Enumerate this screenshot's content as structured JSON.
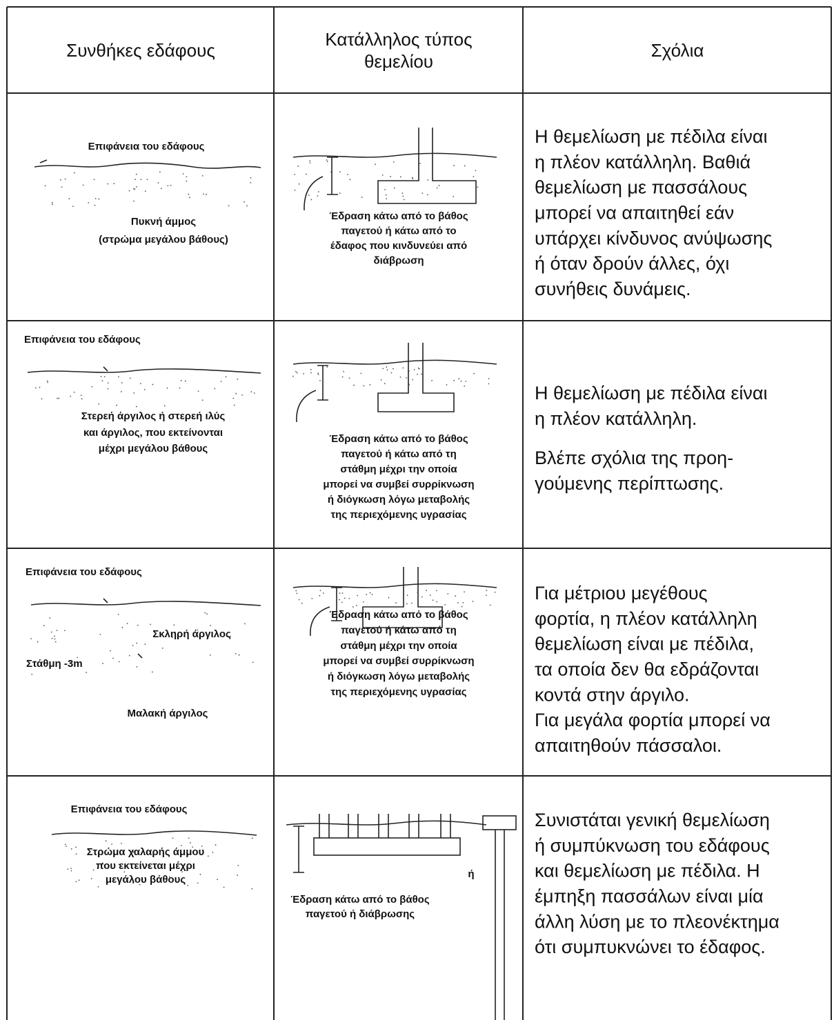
{
  "header": {
    "columns": [
      [
        "Συνθήκες εδάφους"
      ],
      [
        "Κατάλληλος τύπος",
        "θεμελίου"
      ],
      [
        "Σχόλια"
      ]
    ]
  },
  "rows": [
    {
      "soil": [
        "Επιφάνεια του εδάφους",
        "Πυκνή άμμος",
        "(στρώμα μεγάλου βάθους)"
      ],
      "foundation": [
        "Έδραση κάτω από το βάθος",
        "παγετού ή κάτω από το",
        "έδαφος που κινδυνεύει από",
        "διάβρωση"
      ],
      "comments": [
        [
          "Η θεμελίωση με πέδιλα είναι",
          "η πλέον κατάλληλη. Βαθιά",
          "θεμελίωση με πασσάλους",
          "μπορεί να απαιτηθεί εάν",
          "υπάρχει κίνδυνος ανύψωσης",
          "ή όταν δρούν άλλες, όχι",
          "συνήθεις δυνάμεις."
        ]
      ]
    },
    {
      "soil": [
        "Επιφάνεια του εδάφους",
        "Στερεή άργιλος ή στερεή ιλύς",
        "και άργιλος, που εκτείνονται",
        "μέχρι μεγάλου βάθους"
      ],
      "foundation": [
        "Έδραση κάτω από το βάθος",
        "παγετού ή κάτω από τη",
        "στάθμη μέχρι την οποία",
        "μπορεί να συμβεί συρρίκνωση",
        "ή διόγκωση λόγω μεταβολής",
        "της περιεχόμενης υγρασίας"
      ],
      "comments": [
        [
          "Η θεμελίωση με πέδιλα είναι",
          "η πλέον κατάλληλη."
        ],
        [
          "Βλέπε σχόλια της προη-",
          "γούμενης περίπτωσης."
        ]
      ]
    },
    {
      "soil": [
        "Επιφάνεια του εδάφους",
        "Σκληρή άργιλος",
        "Στάθμη   -3m",
        "Μαλακή άργιλος"
      ],
      "foundation": [
        "Έδραση κάτω από το βάθος",
        "παγετού ή κάτω από τη",
        "στάθμη μέχρι την οποία",
        "μπορεί να συμβεί συρρίκνωση",
        "ή διόγκωση λόγω μεταβολής",
        "της περιεχόμενης υγρασίας"
      ],
      "comments": [
        [
          "Για μέτριου μεγέθους",
          "φορτία, η πλέον κατάλληλη",
          "θεμελίωση είναι με πέδιλα,",
          "τα οποία δεν θα εδράζονται",
          "κοντά στην άργιλο.",
          "Για μεγάλα φορτία μπορεί να",
          "απαιτηθούν πάσσαλοι."
        ]
      ]
    },
    {
      "soil": [
        "Επιφάνεια του εδάφους",
        "Στρώμα χαλαρής άμμου",
        "που εκτείνεται μέχρι",
        "μεγάλου βάθους"
      ],
      "foundation": [
        "Έδραση κάτω από το βάθος",
        "παγετού ή διάβρωσης"
      ],
      "alternative": "ή",
      "comments": [
        [
          "Συνιστάται γενική θεμελίωση",
          "ή συμπύκνωση του εδάφους",
          "και θεμελίωση με πέδιλα. Η",
          "έμπηξη πασσάλων είναι μία",
          "άλλη λύση με το πλεονέκτημα",
          "ότι συμπυκνώνει το έδαφος."
        ]
      ]
    }
  ]
}
